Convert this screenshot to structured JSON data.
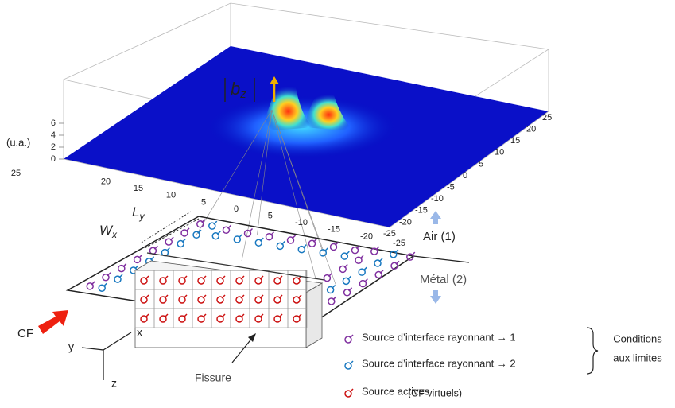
{
  "plot": {
    "field_label": {
      "main": "b",
      "sub": "z"
    },
    "z_unit": "(u.a.)",
    "z_ticks": [
      "0",
      "2",
      "4",
      "6"
    ],
    "left_ticks": [
      "25",
      "20",
      "15",
      "10",
      "5",
      "0",
      "-5",
      "-10",
      "-15",
      "-20",
      "-25"
    ],
    "right_ticks": [
      "25",
      "20",
      "15",
      "10",
      "5",
      "0",
      "-5",
      "-10",
      "-15",
      "-20",
      "-25"
    ]
  },
  "labels": {
    "ly": {
      "main": "L",
      "sub": "y"
    },
    "wx": {
      "main": "W",
      "sub": "x"
    },
    "air": "Air (1)",
    "metal": "Métal (2)",
    "cf": "CF",
    "axis_x": "x",
    "axis_y": "y",
    "axis_z": "z",
    "fissure": "Fissure"
  },
  "legend": {
    "items": [
      "Source d’interface rayonnant → 1",
      "Source d’interface rayonnant → 2",
      "Source actives"
    ],
    "note": "(CF virtuels)",
    "group": [
      "Conditions",
      "aux limites"
    ]
  }
}
